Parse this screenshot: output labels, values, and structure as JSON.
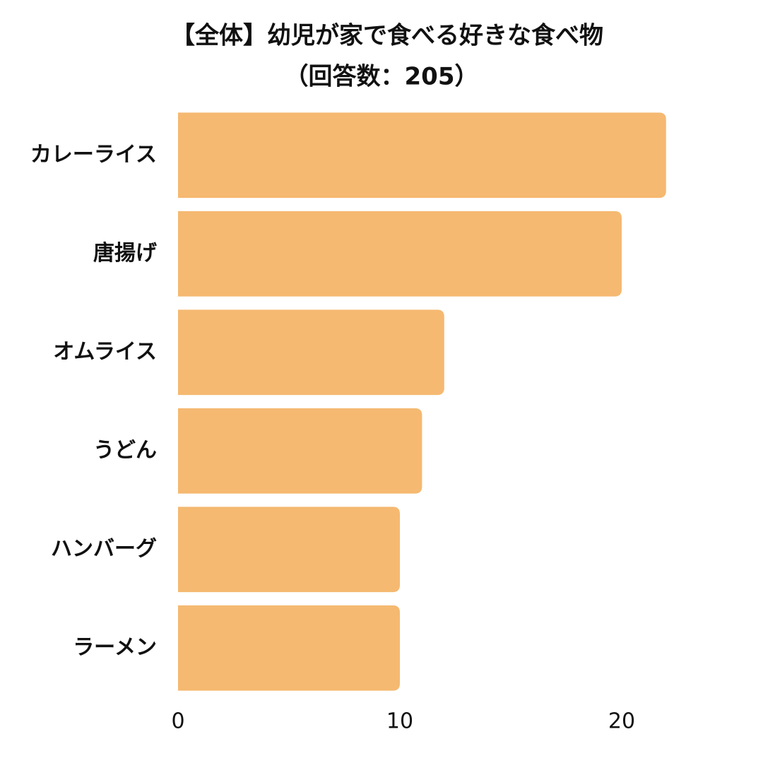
{
  "chart_data": {
    "type": "barh",
    "title": "【全体】幼児が家で食べる好きな食べ物",
    "subtitle": "（回答数：205）",
    "categories": [
      "カレーライス",
      "唐揚げ",
      "オムライス",
      "うどん",
      "ハンバーグ",
      "ラーメン"
    ],
    "values": [
      22,
      20,
      12,
      11,
      10,
      10
    ],
    "color": "#f5b971",
    "xlim": [
      0,
      25
    ],
    "xticks": [
      0,
      10,
      20
    ],
    "grid": false
  }
}
